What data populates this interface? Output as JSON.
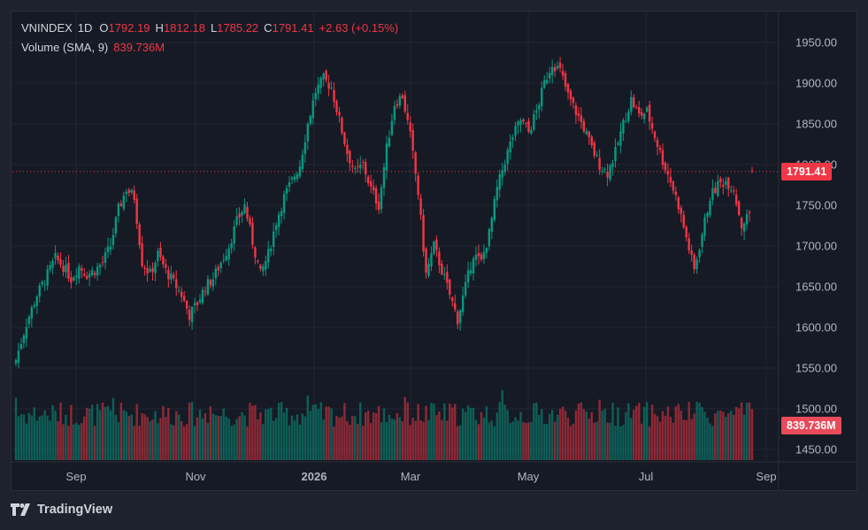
{
  "header": {
    "symbol": "VNINDEX",
    "interval": "1D",
    "open_label": "O",
    "open": "1792.19",
    "high_label": "H",
    "high": "1812.18",
    "low_label": "L",
    "low": "1785.22",
    "close_label": "C",
    "close": "1791.41",
    "change": "+2.63 (+0.15%)",
    "volume_label": "Volume (SMA, 9)",
    "volume_value": "839.736M"
  },
  "price_tag": "1791.41",
  "volume_tag": "839.736M",
  "brand": "TradingView",
  "colors": {
    "up": "#089981",
    "down": "#f23645",
    "background": "#161a25",
    "text": "#d1d4dc"
  },
  "chart_data": {
    "type": "candlestick",
    "ylim": [
      1440,
      1968
    ],
    "grid": true,
    "y_ticks": [
      "1950.00",
      "1900.00",
      "1850.00",
      "1800.00",
      "1750.00",
      "1700.00",
      "1650.00",
      "1600.00",
      "1550.00",
      "1500.00",
      "1450.00"
    ],
    "x_ticks": [
      "Sep",
      "Nov",
      "2026",
      "Mar",
      "May",
      "Jul",
      "Sep"
    ],
    "last_close": 1791.41,
    "close_path": [
      [
        0,
        1560
      ],
      [
        4,
        1605
      ],
      [
        8,
        1640
      ],
      [
        12,
        1665
      ],
      [
        15,
        1685
      ],
      [
        18,
        1675
      ],
      [
        21,
        1660
      ],
      [
        24,
        1675
      ],
      [
        27,
        1665
      ],
      [
        30,
        1670
      ],
      [
        33,
        1680
      ],
      [
        36,
        1700
      ],
      [
        39,
        1745
      ],
      [
        42,
        1770
      ],
      [
        45,
        1760
      ],
      [
        48,
        1680
      ],
      [
        51,
        1665
      ],
      [
        54,
        1690
      ],
      [
        57,
        1670
      ],
      [
        60,
        1655
      ],
      [
        63,
        1640
      ],
      [
        66,
        1615
      ],
      [
        69,
        1630
      ],
      [
        72,
        1650
      ],
      [
        75,
        1660
      ],
      [
        78,
        1680
      ],
      [
        81,
        1700
      ],
      [
        84,
        1730
      ],
      [
        87,
        1750
      ],
      [
        90,
        1705
      ],
      [
        93,
        1665
      ],
      [
        96,
        1690
      ],
      [
        99,
        1730
      ],
      [
        102,
        1760
      ],
      [
        105,
        1780
      ],
      [
        108,
        1800
      ],
      [
        111,
        1850
      ],
      [
        114,
        1890
      ],
      [
        117,
        1905
      ],
      [
        120,
        1895
      ],
      [
        123,
        1855
      ],
      [
        126,
        1815
      ],
      [
        129,
        1790
      ],
      [
        132,
        1800
      ],
      [
        135,
        1770
      ],
      [
        138,
        1750
      ],
      [
        141,
        1820
      ],
      [
        144,
        1875
      ],
      [
        147,
        1885
      ],
      [
        150,
        1835
      ],
      [
        153,
        1765
      ],
      [
        156,
        1665
      ],
      [
        159,
        1700
      ],
      [
        162,
        1670
      ],
      [
        165,
        1640
      ],
      [
        168,
        1610
      ],
      [
        171,
        1650
      ],
      [
        174,
        1690
      ],
      [
        177,
        1680
      ],
      [
        180,
        1715
      ],
      [
        183,
        1770
      ],
      [
        186,
        1805
      ],
      [
        189,
        1835
      ],
      [
        192,
        1855
      ],
      [
        195,
        1840
      ],
      [
        198,
        1865
      ],
      [
        201,
        1900
      ],
      [
        204,
        1925
      ],
      [
        207,
        1915
      ],
      [
        210,
        1885
      ],
      [
        213,
        1865
      ],
      [
        216,
        1845
      ],
      [
        219,
        1820
      ],
      [
        222,
        1800
      ],
      [
        225,
        1790
      ],
      [
        228,
        1815
      ],
      [
        231,
        1850
      ],
      [
        234,
        1880
      ],
      [
        237,
        1860
      ],
      [
        240,
        1865
      ],
      [
        243,
        1835
      ],
      [
        246,
        1805
      ],
      [
        249,
        1780
      ],
      [
        252,
        1750
      ],
      [
        255,
        1710
      ],
      [
        258,
        1670
      ],
      [
        261,
        1715
      ],
      [
        264,
        1760
      ],
      [
        267,
        1775
      ],
      [
        270,
        1780
      ],
      [
        273,
        1770
      ],
      [
        276,
        1725
      ],
      [
        279,
        1740
      ],
      [
        280,
        1791.41
      ]
    ],
    "volume_series": {
      "name": "Volume (SMA, 9)",
      "last": "839.736M"
    }
  }
}
